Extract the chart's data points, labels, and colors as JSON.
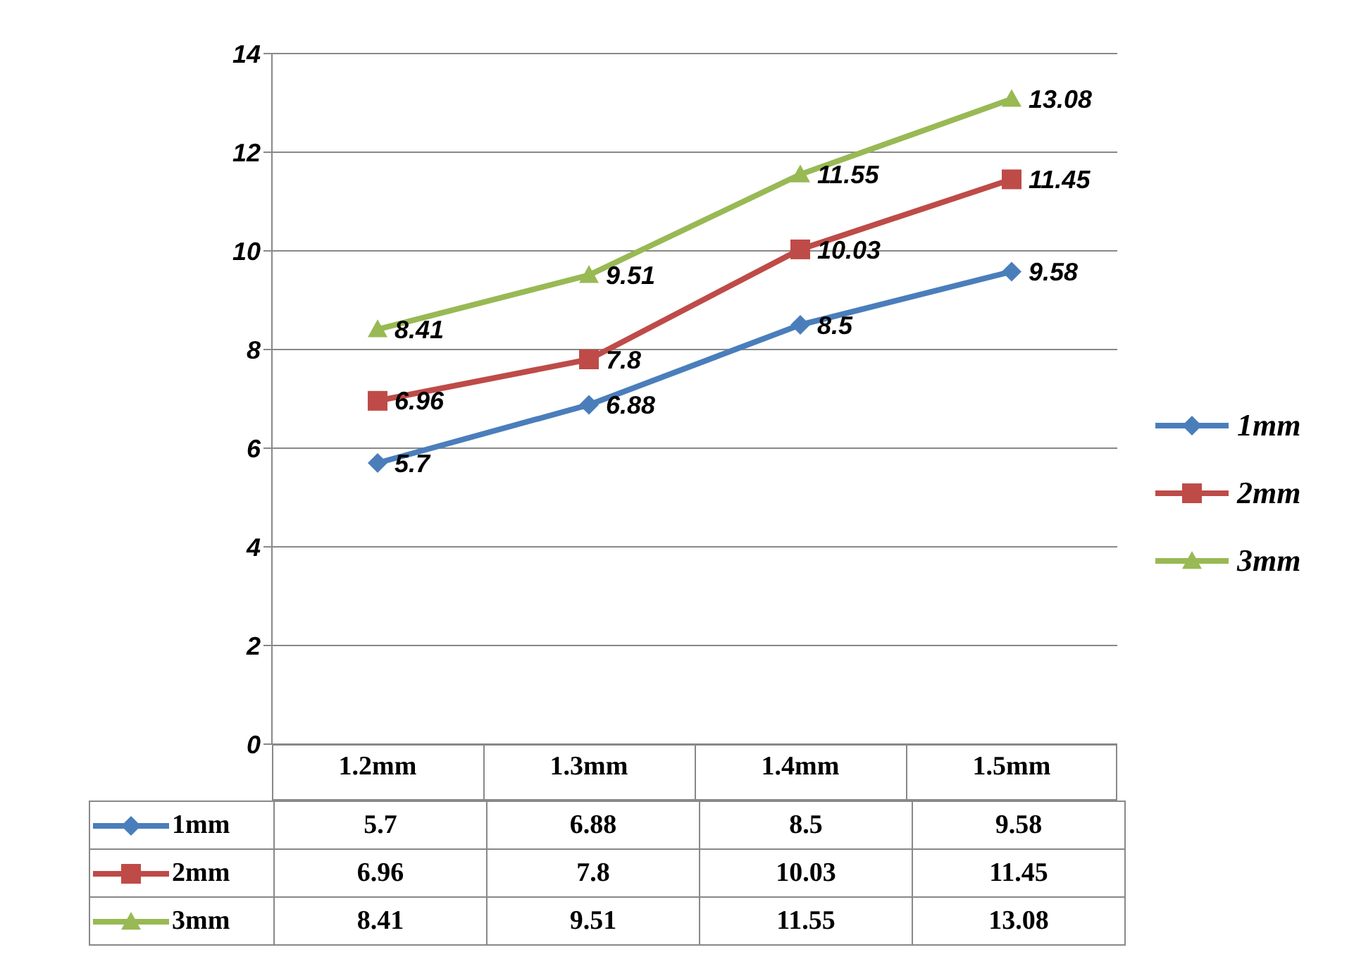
{
  "chart_data": {
    "type": "line",
    "categories": [
      "1.2mm",
      "1.3mm",
      "1.4mm",
      "1.5mm"
    ],
    "series": [
      {
        "name": "1mm",
        "color": "#4a7ebb",
        "marker": "diamond",
        "values": [
          5.7,
          6.88,
          8.5,
          9.58
        ],
        "value_labels": [
          "5.7",
          "6.88",
          "8.5",
          "9.58"
        ]
      },
      {
        "name": "2mm",
        "color": "#be4b48",
        "marker": "square",
        "values": [
          6.96,
          7.8,
          10.03,
          11.45
        ],
        "value_labels": [
          "6.96",
          "7.8",
          "10.03",
          "11.45"
        ]
      },
      {
        "name": "3mm",
        "color": "#98b954",
        "marker": "triangle",
        "values": [
          8.41,
          9.51,
          11.55,
          13.08
        ],
        "value_labels": [
          "8.41",
          "9.51",
          "11.55",
          "13.08"
        ]
      }
    ],
    "ylim": [
      0,
      14
    ],
    "yticks": [
      0,
      2,
      4,
      6,
      8,
      10,
      12,
      14
    ],
    "grid": "y",
    "legend": "right"
  }
}
